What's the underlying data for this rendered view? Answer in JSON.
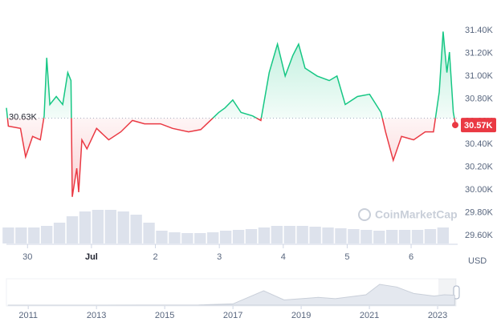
{
  "chart_data": {
    "type": "line",
    "x": [
      -0.33,
      -0.3,
      -0.11,
      -0.03,
      0.08,
      0.2,
      0.26,
      0.3,
      0.35,
      0.45,
      0.55,
      0.63,
      0.68,
      0.7,
      0.77,
      0.8,
      0.85,
      0.93,
      1.08,
      1.27,
      1.46,
      1.64,
      1.83,
      2.08,
      2.27,
      2.52,
      2.71,
      2.86,
      2.99,
      3.09,
      3.21,
      3.34,
      3.52,
      3.65,
      3.78,
      3.91,
      4.03,
      4.15,
      4.24,
      4.34,
      4.53,
      4.72,
      4.84,
      4.97,
      5.16,
      5.35,
      5.53,
      5.6,
      5.72,
      5.85,
      6.04,
      6.22,
      6.35,
      6.44,
      6.5,
      6.56,
      6.6,
      6.66,
      6.69
    ],
    "values": [
      30.72,
      30.56,
      30.54,
      30.29,
      30.47,
      30.44,
      30.65,
      31.16,
      30.75,
      30.82,
      30.75,
      31.03,
      30.96,
      29.94,
      30.19,
      29.98,
      30.44,
      30.36,
      30.54,
      30.44,
      30.51,
      30.61,
      30.58,
      30.58,
      30.54,
      30.51,
      30.53,
      30.61,
      30.68,
      30.72,
      30.79,
      30.68,
      30.65,
      30.61,
      31.03,
      31.28,
      31.0,
      31.18,
      31.28,
      31.07,
      31.0,
      30.96,
      31.0,
      30.75,
      30.82,
      30.84,
      30.68,
      30.51,
      30.26,
      30.47,
      30.44,
      30.51,
      30.51,
      30.86,
      31.39,
      31.03,
      31.21,
      30.68,
      30.59
    ],
    "up_color": "#16c784",
    "down_color": "#ea3943",
    "baseline": {
      "value": 30.63,
      "label": "30.63K"
    },
    "last_price": {
      "value": 30.57,
      "label": "30.57K"
    },
    "xlim": [
      -0.33,
      6.69
    ],
    "xticks": [
      {
        "value": 0,
        "label": "30"
      },
      {
        "value": 1,
        "label": "Jul"
      },
      {
        "value": 2,
        "label": "2"
      },
      {
        "value": 3,
        "label": "3"
      },
      {
        "value": 4,
        "label": "4"
      },
      {
        "value": 5,
        "label": "5"
      },
      {
        "value": 6,
        "label": "6"
      }
    ],
    "ylim": [
      29.558,
      31.597
    ],
    "yticks": [
      {
        "value": 29.6,
        "label": "29.60K"
      },
      {
        "value": 29.8,
        "label": "29.80K"
      },
      {
        "value": 30.0,
        "label": "30.00K"
      },
      {
        "value": 30.2,
        "label": "30.20K"
      },
      {
        "value": 30.4,
        "label": "30.40K"
      },
      {
        "value": 30.6,
        "label": "30.60K"
      },
      {
        "value": 30.8,
        "label": "30.80K"
      },
      {
        "value": 31.0,
        "label": "31.00K"
      },
      {
        "value": 31.2,
        "label": "31.20K"
      },
      {
        "value": 31.4,
        "label": "31.40K"
      }
    ],
    "currency": "USD",
    "watermark": "CoinMarketCap",
    "volume": {
      "x": [
        -0.3,
        -0.1,
        0.1,
        0.3,
        0.5,
        0.7,
        0.9,
        1.1,
        1.3,
        1.5,
        1.7,
        1.9,
        2.1,
        2.3,
        2.5,
        2.7,
        2.9,
        3.1,
        3.3,
        3.5,
        3.7,
        3.9,
        4.1,
        4.3,
        4.5,
        4.7,
        4.9,
        5.1,
        5.3,
        5.5,
        5.7,
        5.9,
        6.1,
        6.3,
        6.5
      ],
      "values": [
        20,
        20,
        20,
        22,
        26,
        34,
        40,
        42,
        42,
        40,
        36,
        26,
        16,
        14,
        13,
        13,
        14,
        16,
        17,
        18,
        20,
        22,
        22,
        22,
        21,
        20,
        19,
        18,
        17,
        16,
        17,
        17,
        17,
        18,
        20
      ],
      "color": "#cfd6e4"
    },
    "navigator": {
      "x": [
        2010.4,
        2013,
        2016,
        2017,
        2017.9,
        2018.5,
        2019.5,
        2020,
        2020.9,
        2021.3,
        2021.8,
        2022.3,
        2022.9,
        2023.2,
        2023.5
      ],
      "values": [
        0,
        0,
        1,
        5,
        55,
        20,
        30,
        25,
        40,
        80,
        70,
        45,
        35,
        40,
        38
      ],
      "xlim": [
        2010.36,
        2023.54
      ],
      "xticks": [
        2011,
        2013,
        2015,
        2017,
        2019,
        2021,
        2023
      ]
    }
  }
}
